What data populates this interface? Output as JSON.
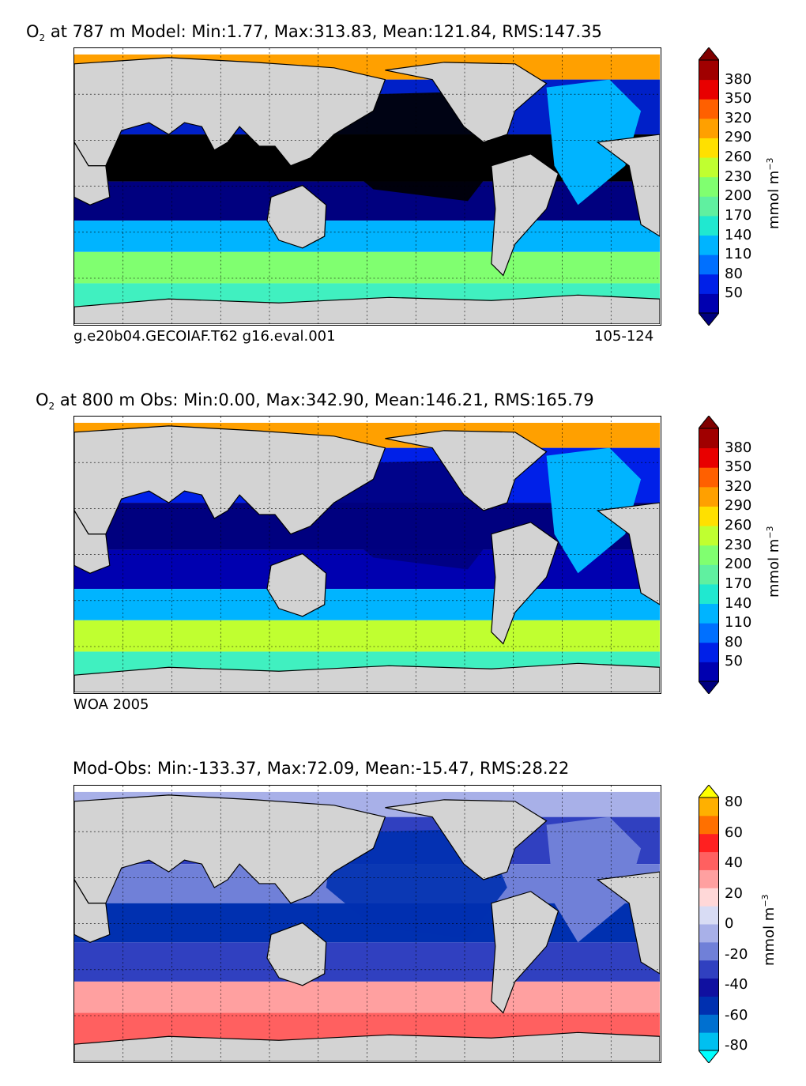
{
  "panels": [
    {
      "title_prefix": "O",
      "title_sub": "2",
      "title_rest": " at 787 m Model: Min:1.77, Max:313.83, Mean:121.84, RMS:147.35",
      "footer_left": "g.e20b04.GECOIAF.T62 g16.eval.001",
      "footer_right": "105-124",
      "units_main": "mmol m",
      "units_sup": "−3",
      "colorbar": {
        "ticks": [
          "380",
          "350",
          "320",
          "290",
          "260",
          "230",
          "200",
          "170",
          "140",
          "110",
          "80",
          "50"
        ],
        "colors": [
          "#00007f",
          "#0000b0",
          "#0020e8",
          "#0070ff",
          "#00b4ff",
          "#20e8d0",
          "#60f0a0",
          "#80ff70",
          "#c0ff30",
          "#ffe000",
          "#ffa000",
          "#ff6000",
          "#e80000",
          "#a00000",
          "#800000"
        ]
      },
      "palette": {
        "deep": "#000000",
        "low": "#00007f",
        "mid1": "#0020c8",
        "mid2": "#0050ff",
        "mid3": "#00b4ff",
        "mid4": "#40f0c0",
        "mid5": "#80ff70",
        "high": "#ffe000",
        "top": "#ffa000"
      }
    },
    {
      "title_prefix": "O",
      "title_sub": "2",
      "title_rest": " at 800 m Obs: Min:0.00, Max:342.90, Mean:146.21, RMS:165.79",
      "footer_left": "WOA 2005",
      "footer_right": "",
      "units_main": "mmol m",
      "units_sup": "−3",
      "colorbar": {
        "ticks": [
          "380",
          "350",
          "320",
          "290",
          "260",
          "230",
          "200",
          "170",
          "140",
          "110",
          "80",
          "50"
        ],
        "colors": [
          "#00007f",
          "#0000b0",
          "#0020e8",
          "#0070ff",
          "#00b4ff",
          "#20e8d0",
          "#60f0a0",
          "#80ff70",
          "#c0ff30",
          "#ffe000",
          "#ffa000",
          "#ff6000",
          "#e80000",
          "#a00000",
          "#800000"
        ]
      },
      "palette": {
        "deep": "#00007f",
        "low": "#0000b0",
        "mid1": "#0020e8",
        "mid2": "#0070ff",
        "mid3": "#00b4ff",
        "mid4": "#40f0c0",
        "mid5": "#c0ff30",
        "high": "#ffe000",
        "top": "#ffa000"
      }
    },
    {
      "title_prefix": "",
      "title_sub": "",
      "title_rest": "Mod-Obs: Min:-133.37, Max:72.09, Mean:-15.47, RMS:28.22",
      "footer_left": "",
      "footer_right": "",
      "units_main": "mmol m",
      "units_sup": "−3",
      "colorbar": {
        "ticks": [
          "80",
          "60",
          "40",
          "20",
          "0",
          "-20",
          "-40",
          "-60",
          "-80"
        ],
        "colors": [
          "#00ffff",
          "#00c0f0",
          "#0070d0",
          "#0030b0",
          "#1010a0",
          "#3040c0",
          "#7080d8",
          "#a8b0e8",
          "#d8dcf4",
          "#ffd8d8",
          "#ffa0a0",
          "#ff6060",
          "#ff2020",
          "#ff7000",
          "#ffb000",
          "#ffff00"
        ]
      },
      "palette": {
        "deep": "#000000",
        "low": "#0030b0",
        "mid1": "#3040c0",
        "mid2": "#7080d8",
        "mid3": "#a8b0e8",
        "mid4": "#d8dcf4",
        "mid5": "#ffa0a0",
        "high": "#ff6060",
        "top": "#ff7000"
      }
    }
  ],
  "chart_data": [
    {
      "type": "heatmap",
      "title": "O2 at 787 m Model: Min:1.77, Max:313.83, Mean:121.84, RMS:147.35",
      "variable": "O2",
      "depth": "787 m",
      "stats": {
        "min": 1.77,
        "max": 313.83,
        "mean": 121.84,
        "rms": 147.35
      },
      "colorbar_label": "mmol m^-3",
      "colorbar_ticks": [
        50,
        80,
        110,
        140,
        170,
        200,
        230,
        260,
        290,
        320,
        350,
        380
      ],
      "footer": [
        "g.e20b04.GECOIAF.T62 g16.eval.001",
        "105-124"
      ]
    },
    {
      "type": "heatmap",
      "title": "O2 at 800 m Obs: Min:0.00, Max:342.90, Mean:146.21, RMS:165.79",
      "variable": "O2",
      "depth": "800 m",
      "stats": {
        "min": 0.0,
        "max": 342.9,
        "mean": 146.21,
        "rms": 165.79
      },
      "colorbar_label": "mmol m^-3",
      "colorbar_ticks": [
        50,
        80,
        110,
        140,
        170,
        200,
        230,
        260,
        290,
        320,
        350,
        380
      ],
      "footer": [
        "WOA 2005"
      ]
    },
    {
      "type": "heatmap",
      "title": "Mod-Obs: Min:-133.37, Max:72.09, Mean:-15.47, RMS:28.22",
      "stats": {
        "min": -133.37,
        "max": 72.09,
        "mean": -15.47,
        "rms": 28.22
      },
      "colorbar_label": "mmol m^-3",
      "colorbar_ticks": [
        -80,
        -60,
        -40,
        -20,
        0,
        20,
        40,
        60,
        80
      ]
    }
  ]
}
